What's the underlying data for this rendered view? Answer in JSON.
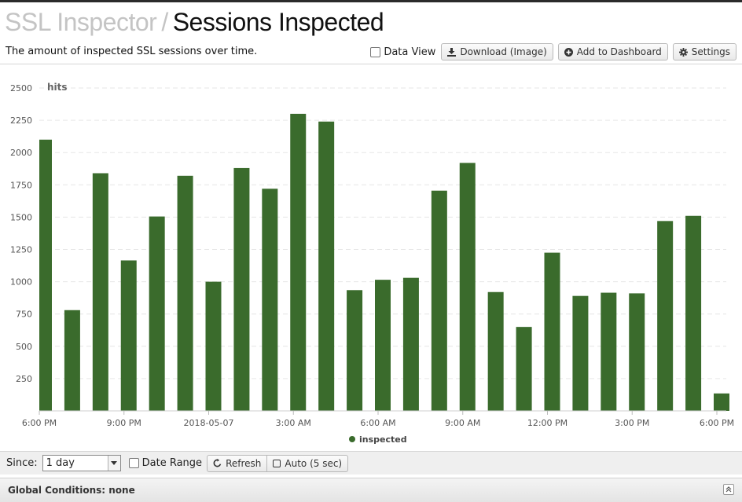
{
  "breadcrumb": {
    "parent": "SSL Inspector",
    "separator": "/",
    "current": "Sessions Inspected"
  },
  "description": "The amount of inspected SSL sessions over time.",
  "toolbar": {
    "data_view_label": "Data View",
    "data_view_checked": false,
    "download_label": "Download (Image)",
    "add_dashboard_label": "Add to Dashboard",
    "settings_label": "Settings"
  },
  "chart_data": {
    "type": "bar",
    "ylabel": "hits",
    "ylim": [
      0,
      2500
    ],
    "yticks": [
      250,
      500,
      750,
      1000,
      1250,
      1500,
      1750,
      2000,
      2250,
      2500
    ],
    "xtick_labels": [
      "6:00 PM",
      "9:00 PM",
      "2018-05-07",
      "3:00 AM",
      "6:00 AM",
      "9:00 AM",
      "12:00 PM",
      "3:00 PM",
      "6:00 PM"
    ],
    "grid": true,
    "legend": "bottom-center",
    "series": [
      {
        "name": "inspected",
        "color": "#3a6b2c",
        "values": [
          2100,
          780,
          1840,
          1165,
          1505,
          1820,
          1000,
          1880,
          1720,
          2300,
          2240,
          935,
          1015,
          1030,
          1705,
          1920,
          920,
          650,
          1225,
          890,
          915,
          910,
          1470,
          1510,
          135
        ]
      }
    ]
  },
  "footer": {
    "since_label": "Since:",
    "since_value": "1 day",
    "date_range_label": "Date Range",
    "date_range_checked": false,
    "refresh_label": "Refresh",
    "auto_label": "Auto (5 sec)"
  },
  "global_conditions": {
    "label": "Global Conditions: none"
  },
  "colors": {
    "accent": "#3a6b2c",
    "grid": "#e6e6e6",
    "axis_text": "#555555"
  }
}
